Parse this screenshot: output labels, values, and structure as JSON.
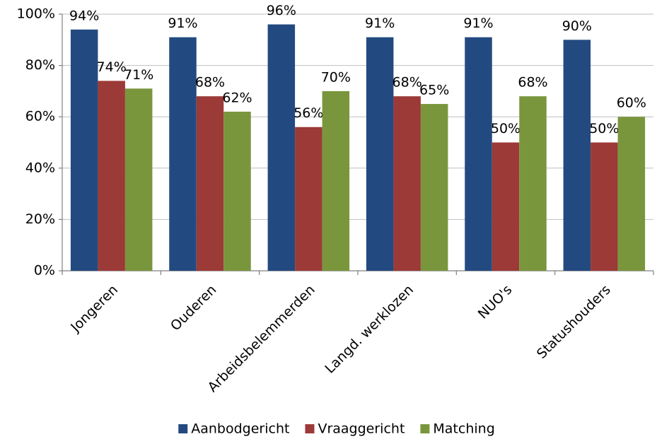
{
  "chart_data": {
    "type": "bar",
    "categories": [
      "Jongeren",
      "Ouderen",
      "Arbeidsbelemmerden",
      "Langd. werklozen",
      "NUO's",
      "Statushouders"
    ],
    "series": [
      {
        "name": "Aanbodgericht",
        "color": "#234a80",
        "values": [
          94,
          91,
          96,
          91,
          91,
          90
        ],
        "value_labels": [
          "94%",
          "91%",
          "96%",
          "91%",
          "91%",
          "90%"
        ]
      },
      {
        "name": "Vraaggericht",
        "color": "#9c3a38",
        "values": [
          74,
          68,
          56,
          68,
          50,
          50
        ],
        "value_labels": [
          "74%",
          "68%",
          "56%",
          "68%",
          "50%",
          "50%"
        ]
      },
      {
        "name": "Matching",
        "color": "#7a963d",
        "values": [
          71,
          62,
          70,
          65,
          68,
          60
        ],
        "value_labels": [
          "71%",
          "62%",
          "70%",
          "65%",
          "68%",
          "60%"
        ]
      }
    ],
    "ylim": [
      0,
      100
    ],
    "yticks": [
      {
        "value": 0,
        "label": "0%"
      },
      {
        "value": 20,
        "label": "20%"
      },
      {
        "value": 40,
        "label": "40%"
      },
      {
        "value": 60,
        "label": "60%"
      },
      {
        "value": 80,
        "label": "80%"
      },
      {
        "value": 100,
        "label": "100%"
      }
    ],
    "grid": true,
    "legend": "bottom"
  }
}
